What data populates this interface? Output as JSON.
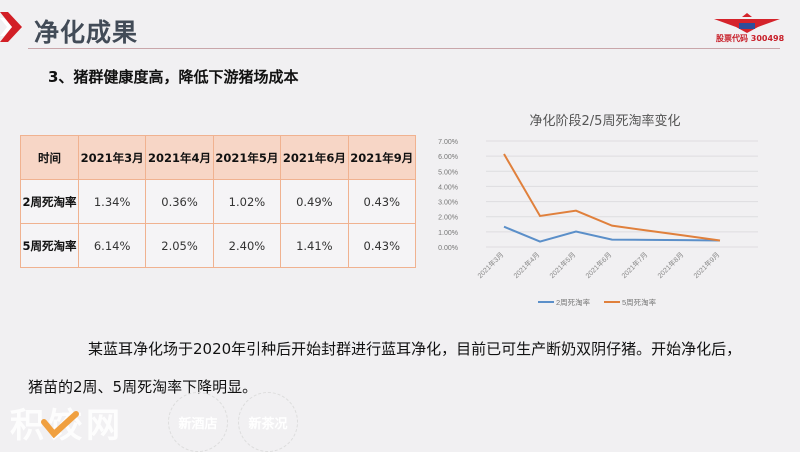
{
  "header": {
    "title": "净化成果",
    "stock_code": "股票代码 300498",
    "accent_color": "#c8202a"
  },
  "section": {
    "subtitle": "3、猪群健康度高，降低下游猪场成本"
  },
  "table": {
    "headers": [
      "时间",
      "2021年3月",
      "2021年4月",
      "2021年5月",
      "2021年6月",
      "2021年9月"
    ],
    "rows": [
      {
        "label": "2周死淘率",
        "values": [
          "1.34%",
          "0.36%",
          "1.02%",
          "0.49%",
          "0.43%"
        ]
      },
      {
        "label": "5周死淘率",
        "values": [
          "6.14%",
          "2.05%",
          "2.40%",
          "1.41%",
          "0.43%"
        ]
      }
    ]
  },
  "chart_data": {
    "type": "line",
    "title": "净化阶段2/5周死淘率变化",
    "categories": [
      "2021年3月",
      "2021年4月",
      "2021年5月",
      "2021年6月",
      "2021年7月",
      "2021年8月",
      "2021年9月"
    ],
    "series": [
      {
        "name": "2周死淘率",
        "color": "#5b8fc9",
        "values": [
          1.34,
          0.36,
          1.02,
          0.49,
          0.47,
          0.45,
          0.43
        ]
      },
      {
        "name": "5周死淘率",
        "color": "#e0803c",
        "values": [
          6.14,
          2.05,
          2.4,
          1.41,
          1.08,
          0.76,
          0.43
        ]
      }
    ],
    "yticks": [
      "7.00%",
      "6.00%",
      "5.00%",
      "4.00%",
      "3.00%",
      "2.00%",
      "1.00%",
      "0.00%"
    ],
    "ylim": [
      0,
      7
    ],
    "xlabel": "",
    "ylabel": "",
    "grid": true,
    "legend_position": "bottom"
  },
  "body": {
    "paragraph_line1": "某蓝耳净化场于2020年引种后开始封群进行蓝耳净化，目前已可生产断奶双阴仔猪。开始净化后，",
    "paragraph_line2": "猪苗的2周、5周死淘率下降明显。"
  },
  "watermark": {
    "brand": "积饺网",
    "stamp1": "新酒店",
    "stamp2": "新茶况"
  }
}
